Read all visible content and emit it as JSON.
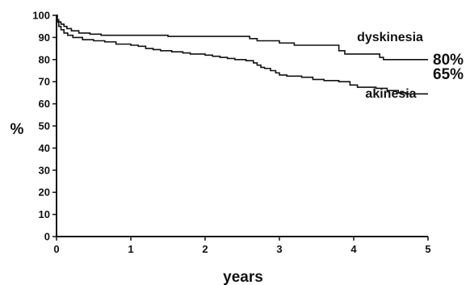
{
  "chart_data": {
    "type": "line",
    "step": true,
    "ylabel": "%",
    "xlabel": "years",
    "xlim": [
      0,
      5
    ],
    "ylim": [
      0,
      100
    ],
    "xticks": [
      "0",
      "1",
      "2",
      "3",
      "4",
      "5"
    ],
    "yticks": [
      "0",
      "10",
      "20",
      "30",
      "40",
      "50",
      "60",
      "70",
      "80",
      "90",
      "100"
    ],
    "grid": false,
    "legend": "none",
    "series": [
      {
        "name": "dyskinesia",
        "end_label": "80%",
        "points": [
          [
            0,
            100
          ],
          [
            0.01,
            98
          ],
          [
            0.03,
            97
          ],
          [
            0.06,
            96
          ],
          [
            0.1,
            95
          ],
          [
            0.14,
            94
          ],
          [
            0.2,
            93
          ],
          [
            0.3,
            92
          ],
          [
            0.45,
            91.5
          ],
          [
            0.6,
            91
          ],
          [
            1.5,
            90.5
          ],
          [
            2.6,
            89.5
          ],
          [
            2.7,
            88.5
          ],
          [
            3.0,
            87.5
          ],
          [
            3.2,
            86.5
          ],
          [
            3.8,
            84
          ],
          [
            3.88,
            82.5
          ],
          [
            4.35,
            81
          ],
          [
            4.4,
            80
          ],
          [
            5.0,
            80
          ]
        ]
      },
      {
        "name": "akinesia",
        "end_label": "65%",
        "points": [
          [
            0,
            100
          ],
          [
            0.01,
            97
          ],
          [
            0.03,
            95
          ],
          [
            0.06,
            93.5
          ],
          [
            0.1,
            92
          ],
          [
            0.15,
            91
          ],
          [
            0.22,
            90
          ],
          [
            0.35,
            89
          ],
          [
            0.5,
            88.5
          ],
          [
            0.65,
            88
          ],
          [
            0.8,
            87
          ],
          [
            1.0,
            86.5
          ],
          [
            1.1,
            86
          ],
          [
            1.2,
            85
          ],
          [
            1.3,
            84.5
          ],
          [
            1.4,
            84
          ],
          [
            1.55,
            83.5
          ],
          [
            1.7,
            83
          ],
          [
            1.8,
            82.5
          ],
          [
            2.0,
            82
          ],
          [
            2.1,
            81.5
          ],
          [
            2.2,
            81
          ],
          [
            2.3,
            80.5
          ],
          [
            2.4,
            80
          ],
          [
            2.55,
            79.5
          ],
          [
            2.65,
            78.5
          ],
          [
            2.7,
            77.5
          ],
          [
            2.75,
            76.5
          ],
          [
            2.8,
            76
          ],
          [
            2.88,
            75
          ],
          [
            2.95,
            74
          ],
          [
            3.0,
            73
          ],
          [
            3.1,
            72.5
          ],
          [
            3.3,
            72
          ],
          [
            3.45,
            71
          ],
          [
            3.6,
            70.5
          ],
          [
            3.8,
            70
          ],
          [
            3.95,
            68.5
          ],
          [
            4.05,
            67.5
          ],
          [
            4.3,
            67
          ],
          [
            4.45,
            66
          ],
          [
            4.6,
            65
          ],
          [
            4.7,
            64.5
          ],
          [
            5.0,
            64.5
          ]
        ]
      }
    ]
  }
}
